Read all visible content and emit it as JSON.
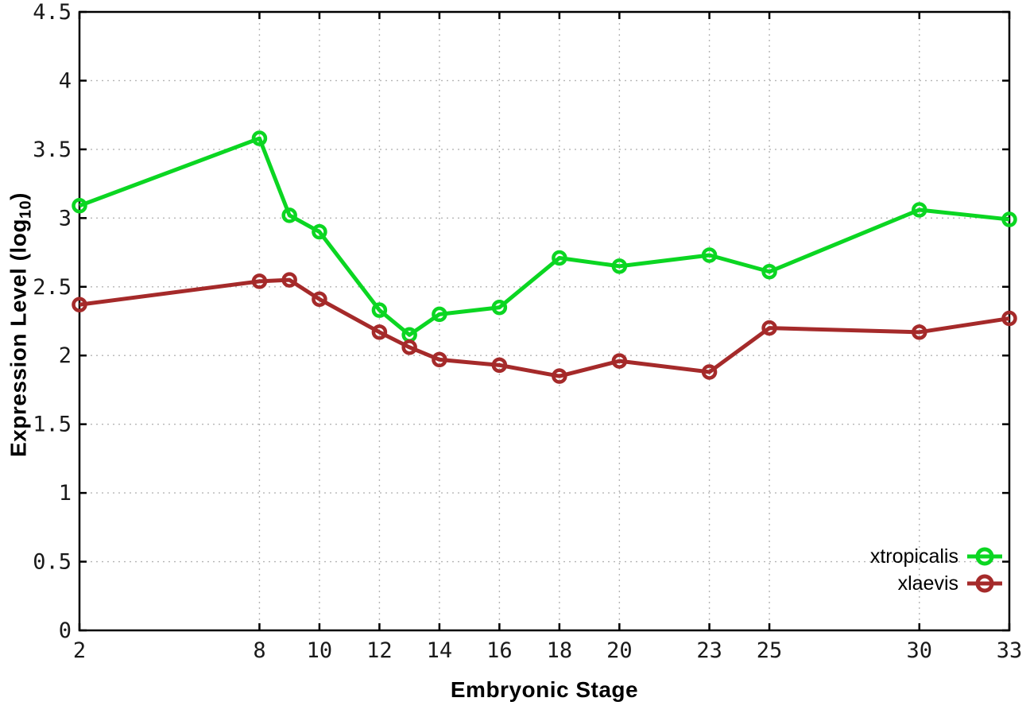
{
  "chart_data": {
    "type": "line",
    "title": "",
    "xlabel": "Embryonic Stage",
    "ylabel": "Expression Level (log10)",
    "ylabel_parts": {
      "pre": "Expression Level (log",
      "sub": "10",
      "post": ")"
    },
    "xlim": [
      2,
      33
    ],
    "ylim": [
      0,
      4.5
    ],
    "grid": true,
    "legend_position": "bottom-right",
    "x_ticks": [
      "2",
      "8",
      "10",
      "12",
      "14",
      "16",
      "18",
      "20",
      "23",
      "25",
      "30",
      "33"
    ],
    "y_ticks": [
      "0",
      "0.5",
      "1",
      "1.5",
      "2",
      "2.5",
      "3",
      "3.5",
      "4",
      "4.5"
    ],
    "x": [
      2,
      8,
      9,
      10,
      12,
      13,
      14,
      16,
      18,
      20,
      23,
      25,
      30,
      33
    ],
    "series": [
      {
        "name": "xtropicalis",
        "color": "#0bd622",
        "values": [
          3.09,
          3.58,
          3.02,
          2.9,
          2.33,
          2.15,
          2.3,
          2.35,
          2.71,
          2.65,
          2.73,
          2.61,
          3.06,
          2.99
        ]
      },
      {
        "name": "xlaevis",
        "color": "#a52a2a",
        "values": [
          2.37,
          2.54,
          2.55,
          2.41,
          2.17,
          2.06,
          1.97,
          1.93,
          1.85,
          1.96,
          1.88,
          2.2,
          2.17,
          2.27
        ]
      }
    ],
    "style": {
      "grid_color": "#b5b5b5",
      "border_color": "#000000",
      "background": "#ffffff",
      "line_width": 5,
      "marker": "open-circle"
    }
  }
}
